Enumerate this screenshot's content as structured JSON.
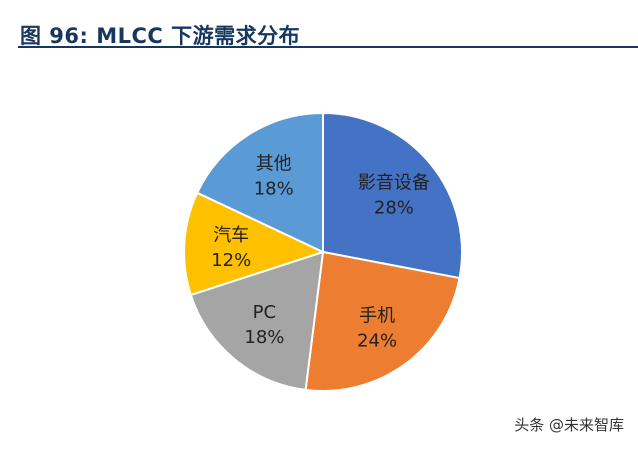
{
  "figure": {
    "title": "图 96: MLCC 下游需求分布"
  },
  "chart_data": {
    "type": "pie",
    "title": "图 96: MLCC 下游需求分布",
    "start_angle_deg": 0,
    "direction": "clockwise",
    "slices": [
      {
        "label": "影音设备",
        "value": 28,
        "value_text": "28%",
        "color": "#4472c4"
      },
      {
        "label": "手机",
        "value": 24,
        "value_text": "24%",
        "color": "#ed7d31"
      },
      {
        "label": "PC",
        "value": 18,
        "value_text": "18%",
        "color": "#a5a5a5"
      },
      {
        "label": "汽车",
        "value": 12,
        "value_text": "12%",
        "color": "#ffc000"
      },
      {
        "label": "其他",
        "value": 18,
        "value_text": "18%",
        "color": "#5b9bd5"
      }
    ],
    "legend": "none"
  },
  "watermark": {
    "text": "头条 @未来智库"
  }
}
